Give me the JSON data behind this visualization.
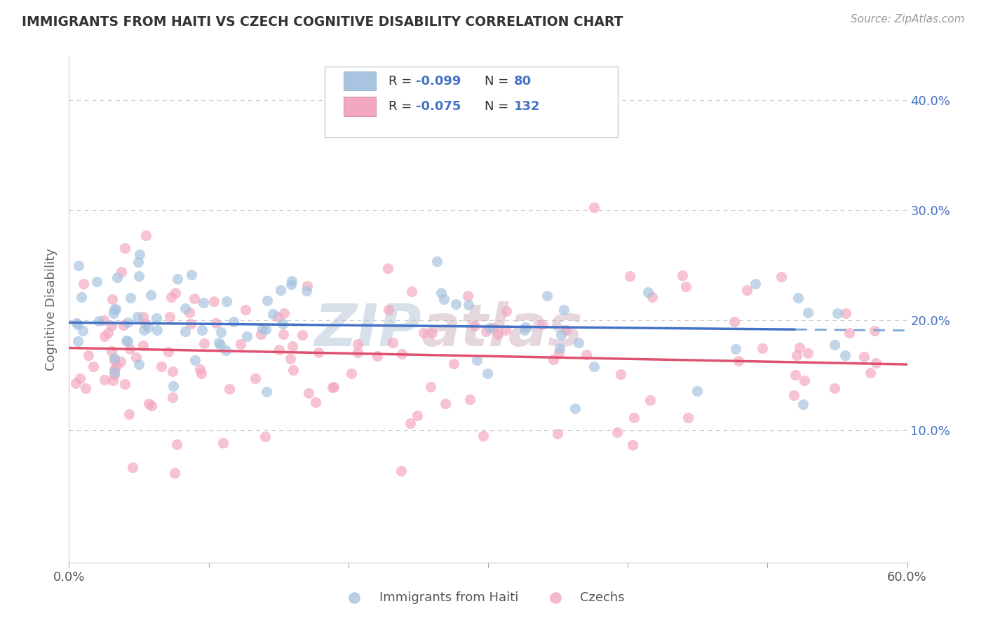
{
  "title": "IMMIGRANTS FROM HAITI VS CZECH COGNITIVE DISABILITY CORRELATION CHART",
  "source": "Source: ZipAtlas.com",
  "ylabel": "Cognitive Disability",
  "xlim": [
    0.0,
    0.6
  ],
  "ylim": [
    -0.02,
    0.44
  ],
  "yticks": [
    0.1,
    0.2,
    0.3,
    0.4
  ],
  "ytick_labels": [
    "10.0%",
    "20.0%",
    "30.0%",
    "40.0%"
  ],
  "xticks": [
    0.0,
    0.1,
    0.2,
    0.3,
    0.4,
    0.5,
    0.6
  ],
  "xtick_labels_show": [
    "0.0%",
    "",
    "",
    "",
    "",
    "",
    "60.0%"
  ],
  "legend_r1": "R = -0.099",
  "legend_n1": "N =  80",
  "legend_r2": "R = -0.075",
  "legend_n2": "N = 132",
  "color_haiti": "#a8c4e0",
  "color_czech": "#f4a8c0",
  "color_line_haiti": "#4472c4",
  "color_line_czech": "#e05070",
  "color_line_dashed": "#7aa8d8",
  "watermark_color": "#c8d8eb",
  "background_color": "#ffffff",
  "grid_color": "#cccccc",
  "title_color": "#333333",
  "axis_label_color": "#666666",
  "tick_color": "#4472c4",
  "haiti_line_intercept": 0.198,
  "haiti_line_slope": -0.012,
  "czech_line_intercept": 0.175,
  "czech_line_slope": -0.025
}
